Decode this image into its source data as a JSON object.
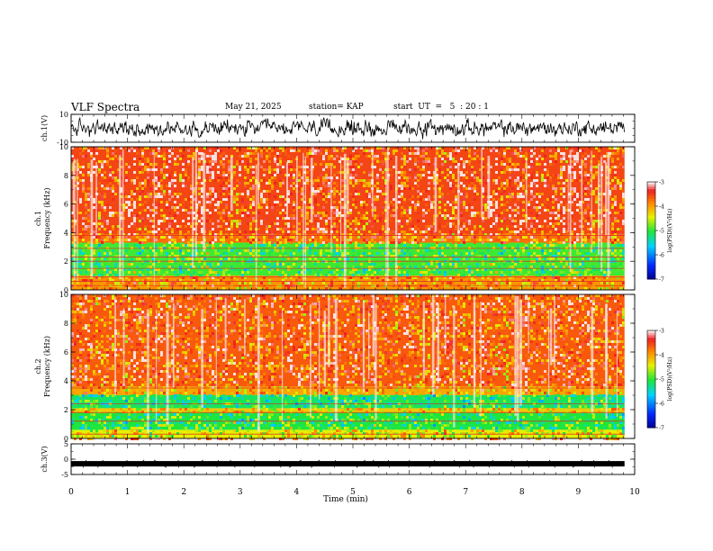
{
  "header": {
    "title": "VLF Spectra",
    "date": "May 21, 2025",
    "station": "station= KAP",
    "start": "start  UT  =   5  : 20 : 1"
  },
  "chart_data": {
    "type": "heatmap",
    "title": "VLF Spectra",
    "xlabel": "Time  (min)",
    "xlim": [
      0,
      10
    ],
    "x_ticks": [
      "0",
      "1",
      "2",
      "3",
      "4",
      "5",
      "6",
      "7",
      "8",
      "9",
      "10"
    ],
    "panels": [
      {
        "name": "ch1-waveform",
        "type": "line",
        "ylabel": "ch.1(V)",
        "ylim": [
          -10,
          10
        ],
        "y_ticks": [
          "10",
          "-10"
        ],
        "data_end_min": 9.82
      },
      {
        "name": "ch1-spectrogram",
        "type": "heatmap",
        "ylabel": "ch.1 Frequency  (kHz)",
        "ylim": [
          0,
          10
        ],
        "y_ticks": [
          "0",
          "2",
          "4",
          "6",
          "8",
          "10"
        ],
        "data_end_min": 9.82,
        "bands_khz": [
          {
            "from": 0,
            "to": 1.0,
            "level": -3.9
          },
          {
            "from": 1.0,
            "to": 3.3,
            "level": -4.9
          },
          {
            "from": 3.3,
            "to": 3.9,
            "level": -3.7
          },
          {
            "from": 3.9,
            "to": 10,
            "level": -3.5
          }
        ],
        "lines_khz": [
          0.3,
          0.6,
          0.9,
          1.5,
          2.0,
          2.3,
          2.9,
          3.8
        ]
      },
      {
        "name": "ch2-spectrogram",
        "type": "heatmap",
        "ylabel": "ch.2 Frequency  (kHz)",
        "ylim": [
          0,
          10
        ],
        "y_ticks": [
          "0",
          "2",
          "4",
          "6",
          "8",
          "10"
        ],
        "data_end_min": 9.82,
        "bands_khz": [
          {
            "from": 0,
            "to": 0.6,
            "level": -4.4
          },
          {
            "from": 0.6,
            "to": 1.8,
            "level": -5.0
          },
          {
            "from": 1.8,
            "to": 2.1,
            "level": -4.2
          },
          {
            "from": 2.1,
            "to": 3.0,
            "level": -5.1
          },
          {
            "from": 3.0,
            "to": 3.6,
            "level": -4.0
          },
          {
            "from": 3.6,
            "to": 10,
            "level": -3.6
          }
        ],
        "lines_khz": [
          0.3,
          1.2,
          1.8,
          2.4,
          3.5
        ]
      },
      {
        "name": "ch3-waveform",
        "type": "line",
        "ylabel": "ch.3(V)",
        "ylim": [
          -5,
          5
        ],
        "y_ticks": [
          "5",
          "0",
          "-5"
        ],
        "signal_level_v": -1.5,
        "data_end_min": 9.82
      }
    ],
    "colorbars": [
      {
        "name": "ch1-colorbar",
        "label": "log(PSD)(V²/Hz)",
        "range": [
          -7,
          -3
        ],
        "ticks": [
          "-3",
          "-4",
          "-5",
          "-6",
          "-7"
        ]
      },
      {
        "name": "ch2-colorbar",
        "label": "log(PSD)(V²/Hz)",
        "range": [
          -7,
          -3
        ],
        "ticks": [
          "-3",
          "-4",
          "-5",
          "-6",
          "-7"
        ]
      }
    ]
  }
}
